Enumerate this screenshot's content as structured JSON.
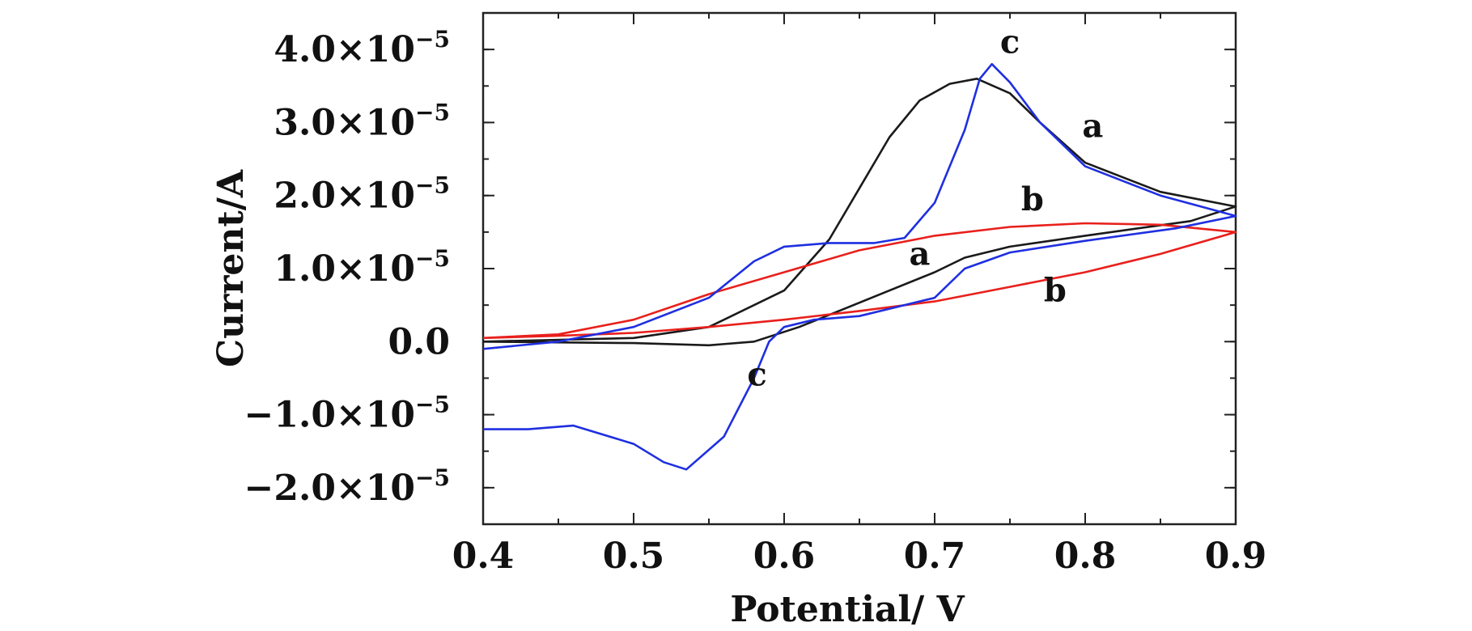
{
  "chart_data": {
    "type": "line",
    "xlabel": "Potential/ V",
    "ylabel": "Current/A",
    "xlim": [
      0.4,
      0.9
    ],
    "ylim": [
      -2.5e-05,
      4.5e-05
    ],
    "x_ticks": [
      0.4,
      0.5,
      0.6,
      0.7,
      0.8,
      0.9
    ],
    "x_tick_labels": [
      "0.4",
      "0.5",
      "0.6",
      "0.7",
      "0.8",
      "0.9"
    ],
    "y_ticks": [
      4e-05,
      3e-05,
      2e-05,
      1e-05,
      0.0,
      -1e-05,
      -2e-05
    ],
    "y_tick_labels": [
      {
        "mantissa": "4.0",
        "times": "×10",
        "exp": "−5"
      },
      {
        "mantissa": "3.0",
        "times": "×10",
        "exp": "−5"
      },
      {
        "mantissa": "2.0",
        "times": "×10",
        "exp": "−5"
      },
      {
        "mantissa": "1.0",
        "times": "×10",
        "exp": "−5"
      },
      {
        "mantissa": "0.0",
        "times": "",
        "exp": ""
      },
      {
        "mantissa": "−1.0",
        "times": "×10",
        "exp": "−5"
      },
      {
        "mantissa": "−2.0",
        "times": "×10",
        "exp": "−5"
      }
    ],
    "grid": false,
    "series": [
      {
        "name": "a",
        "color": "#1a1a1a",
        "points": [
          [
            0.4,
            0.0
          ],
          [
            0.5,
            5e-07
          ],
          [
            0.55,
            2e-06
          ],
          [
            0.6,
            7e-06
          ],
          [
            0.63,
            1.4e-05
          ],
          [
            0.65,
            2.1e-05
          ],
          [
            0.67,
            2.8e-05
          ],
          [
            0.69,
            3.3e-05
          ],
          [
            0.71,
            3.53e-05
          ],
          [
            0.728,
            3.6e-05
          ],
          [
            0.75,
            3.4e-05
          ],
          [
            0.77,
            3e-05
          ],
          [
            0.8,
            2.45e-05
          ],
          [
            0.85,
            2.05e-05
          ],
          [
            0.9,
            1.85e-05
          ],
          [
            0.87,
            1.65e-05
          ],
          [
            0.8,
            1.45e-05
          ],
          [
            0.75,
            1.3e-05
          ],
          [
            0.72,
            1.15e-05
          ],
          [
            0.7,
            9.5e-06
          ],
          [
            0.67,
            7e-06
          ],
          [
            0.64,
            4.5e-06
          ],
          [
            0.61,
            2e-06
          ],
          [
            0.58,
            0.0
          ],
          [
            0.55,
            -5e-07
          ],
          [
            0.5,
            -2e-07
          ],
          [
            0.4,
            0.0
          ]
        ]
      },
      {
        "name": "b",
        "color": "#e8201c",
        "points": [
          [
            0.4,
            5e-07
          ],
          [
            0.45,
            1e-06
          ],
          [
            0.5,
            3e-06
          ],
          [
            0.55,
            6.5e-06
          ],
          [
            0.6,
            9.5e-06
          ],
          [
            0.65,
            1.25e-05
          ],
          [
            0.7,
            1.45e-05
          ],
          [
            0.75,
            1.57e-05
          ],
          [
            0.8,
            1.62e-05
          ],
          [
            0.85,
            1.6e-05
          ],
          [
            0.9,
            1.5e-05
          ],
          [
            0.85,
            1.2e-05
          ],
          [
            0.8,
            9.5e-06
          ],
          [
            0.75,
            7.5e-06
          ],
          [
            0.7,
            5.5e-06
          ],
          [
            0.65,
            4.2e-06
          ],
          [
            0.6,
            3e-06
          ],
          [
            0.55,
            2e-06
          ],
          [
            0.5,
            1.2e-06
          ],
          [
            0.45,
            8e-07
          ],
          [
            0.4,
            5e-07
          ]
        ]
      },
      {
        "name": "c",
        "color": "#1f2fe0",
        "points": [
          [
            0.4,
            -1e-06
          ],
          [
            0.45,
            0.0
          ],
          [
            0.5,
            2e-06
          ],
          [
            0.55,
            6e-06
          ],
          [
            0.58,
            1.1e-05
          ],
          [
            0.6,
            1.3e-05
          ],
          [
            0.63,
            1.35e-05
          ],
          [
            0.66,
            1.35e-05
          ],
          [
            0.68,
            1.42e-05
          ],
          [
            0.7,
            1.9e-05
          ],
          [
            0.72,
            2.9e-05
          ],
          [
            0.73,
            3.6e-05
          ],
          [
            0.738,
            3.8e-05
          ],
          [
            0.75,
            3.55e-05
          ],
          [
            0.77,
            3e-05
          ],
          [
            0.8,
            2.4e-05
          ],
          [
            0.85,
            2e-05
          ],
          [
            0.9,
            1.72e-05
          ],
          [
            0.86,
            1.55e-05
          ],
          [
            0.8,
            1.38e-05
          ],
          [
            0.75,
            1.22e-05
          ],
          [
            0.72,
            1e-05
          ],
          [
            0.7,
            6e-06
          ],
          [
            0.65,
            3.5e-06
          ],
          [
            0.62,
            3e-06
          ],
          [
            0.6,
            2e-06
          ],
          [
            0.59,
            0.0
          ],
          [
            0.58,
            -5e-06
          ],
          [
            0.56,
            -1.3e-05
          ],
          [
            0.535,
            -1.75e-05
          ],
          [
            0.52,
            -1.65e-05
          ],
          [
            0.5,
            -1.4e-05
          ],
          [
            0.46,
            -1.15e-05
          ],
          [
            0.43,
            -1.2e-05
          ],
          [
            0.4,
            -1.2e-05
          ]
        ]
      }
    ],
    "annotations": [
      {
        "text": "a",
        "x": 0.805,
        "y": 2.8e-05
      },
      {
        "text": "a",
        "x": 0.69,
        "y": 1.05e-05
      },
      {
        "text": "b",
        "x": 0.765,
        "y": 1.8e-05
      },
      {
        "text": "b",
        "x": 0.78,
        "y": 5.5e-06
      },
      {
        "text": "c",
        "x": 0.75,
        "y": 3.95e-05
      },
      {
        "text": "c",
        "x": 0.582,
        "y": -6e-06
      }
    ]
  }
}
